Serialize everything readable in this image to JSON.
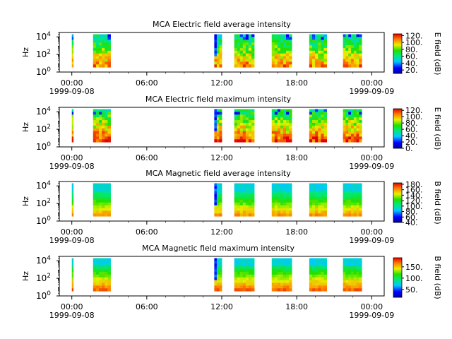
{
  "chart_data": [
    {
      "type": "heatmap",
      "title": "MCA  Electric field average intensity",
      "ylabel": "Hz",
      "colorbar_label": "E field (dB)",
      "colorbar_ticks": [
        "20.",
        "40.",
        "60.",
        "80.",
        "100.",
        "120."
      ],
      "colorbar_range": [
        10,
        125
      ],
      "x_ticks": [
        "00:00",
        "06:00",
        "12:00",
        "18:00",
        "00:00"
      ],
      "x_tick_dates": [
        "1999-09-08",
        "",
        "",
        "",
        "1999-09-09"
      ],
      "xlim_hours": [
        -1,
        25
      ],
      "y_scale": "log",
      "y_ticks": [
        "10^0",
        "10^2",
        "10^4"
      ],
      "ylim_exponent": [
        0,
        4.5
      ],
      "data_segments_hours": [
        [
          0.0,
          0.1
        ],
        [
          1.7,
          3.1
        ],
        [
          11.4,
          12.0
        ],
        [
          13.0,
          14.6
        ],
        [
          16.0,
          17.6
        ],
        [
          19.0,
          20.4
        ],
        [
          21.7,
          23.2
        ]
      ]
    },
    {
      "type": "heatmap",
      "title": "MCA  Electric field maximum intensity",
      "ylabel": "Hz",
      "colorbar_label": "E field (dB)",
      "colorbar_ticks": [
        "0.",
        "20.",
        "40.",
        "60.",
        "80.",
        "100.",
        "120."
      ],
      "colorbar_range": [
        0,
        125
      ],
      "x_ticks": [
        "00:00",
        "06:00",
        "12:00",
        "18:00",
        "00:00"
      ],
      "x_tick_dates": [
        "1999-09-08",
        "",
        "",
        "",
        "1999-09-09"
      ],
      "xlim_hours": [
        -1,
        25
      ],
      "y_scale": "log",
      "y_ticks": [
        "10^0",
        "10^2",
        "10^4"
      ],
      "ylim_exponent": [
        0,
        4.5
      ],
      "data_segments_hours": [
        [
          0.0,
          0.1
        ],
        [
          1.7,
          3.1
        ],
        [
          11.4,
          12.0
        ],
        [
          13.0,
          14.6
        ],
        [
          16.0,
          17.6
        ],
        [
          19.0,
          20.4
        ],
        [
          21.7,
          23.2
        ]
      ]
    },
    {
      "type": "heatmap",
      "title": "MCA  Magnetic field average intensity",
      "ylabel": "Hz",
      "colorbar_label": "B field (dB)",
      "colorbar_ticks": [
        "40.",
        "60.",
        "80.",
        "100.",
        "120.",
        "140.",
        "160.",
        "180."
      ],
      "colorbar_range": [
        40,
        185
      ],
      "x_ticks": [
        "00:00",
        "06:00",
        "12:00",
        "18:00",
        "00:00"
      ],
      "x_tick_dates": [
        "1999-09-08",
        "",
        "",
        "",
        "1999-09-09"
      ],
      "xlim_hours": [
        -1,
        25
      ],
      "y_scale": "log",
      "y_ticks": [
        "10^0",
        "10^2",
        "10^4"
      ],
      "ylim_exponent": [
        0,
        4.5
      ],
      "data_segments_hours": [
        [
          0.0,
          0.1
        ],
        [
          1.7,
          3.1
        ],
        [
          11.4,
          12.0
        ],
        [
          13.0,
          14.6
        ],
        [
          16.0,
          17.6
        ],
        [
          19.0,
          20.4
        ],
        [
          21.7,
          23.2
        ]
      ]
    },
    {
      "type": "heatmap",
      "title": "MCA  Magnetic field maximum intensity",
      "ylabel": "Hz",
      "colorbar_label": "B field (dB)",
      "colorbar_ticks": [
        "50.",
        "100.",
        "150."
      ],
      "colorbar_range": [
        15,
        190
      ],
      "x_ticks": [
        "00:00",
        "06:00",
        "12:00",
        "18:00",
        "00:00"
      ],
      "x_tick_dates": [
        "1999-09-08",
        "",
        "",
        "",
        "1999-09-09"
      ],
      "xlim_hours": [
        -1,
        25
      ],
      "y_scale": "log",
      "y_ticks": [
        "10^0",
        "10^2",
        "10^4"
      ],
      "ylim_exponent": [
        0,
        4.5
      ],
      "data_segments_hours": [
        [
          0.0,
          0.1
        ],
        [
          1.7,
          3.1
        ],
        [
          11.4,
          12.0
        ],
        [
          13.0,
          14.6
        ],
        [
          16.0,
          17.6
        ],
        [
          19.0,
          20.4
        ],
        [
          21.7,
          23.2
        ]
      ]
    }
  ]
}
